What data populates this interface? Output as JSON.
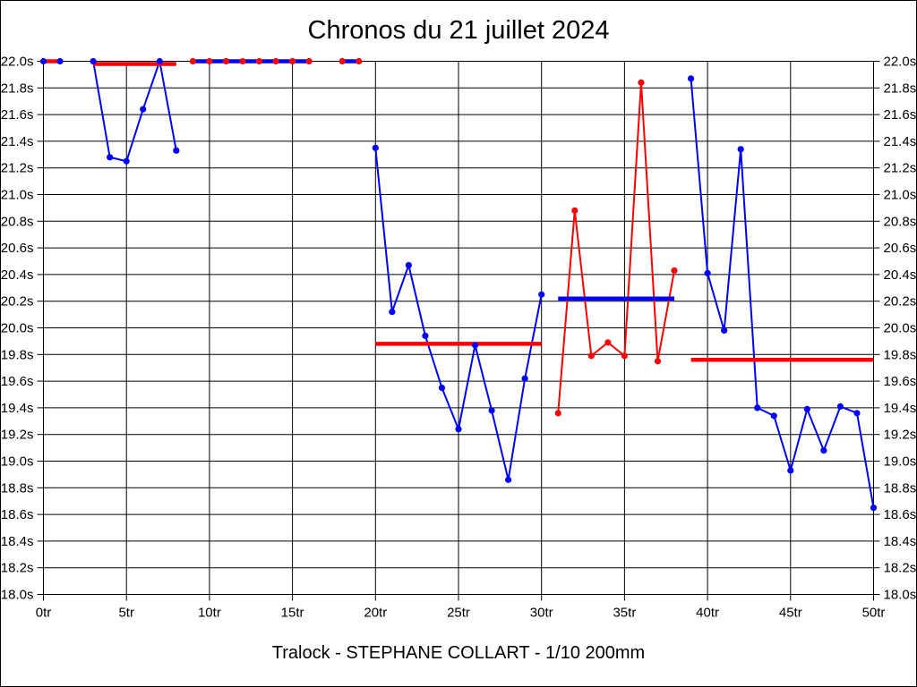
{
  "window": {
    "background": "#ffffff",
    "border_color": "#000000"
  },
  "chart_data": {
    "type": "line",
    "title": "Chronos du 21 juillet 2024",
    "footer": "Tralock - STEPHANE COLLART - 1/10 200mm",
    "xlabel": "",
    "ylabel": "",
    "x_unit": "tr",
    "y_unit": "s",
    "xlim": [
      0,
      50
    ],
    "ylim": [
      18.0,
      22.0
    ],
    "x_tick_step": 5,
    "y_tick_step": 0.2,
    "grid": true,
    "legend": "none",
    "x_tick_labels": [
      "0tr",
      "5tr",
      "10tr",
      "15tr",
      "20tr",
      "25tr",
      "30tr",
      "35tr",
      "40tr",
      "45tr",
      "50tr"
    ],
    "y_tick_labels": [
      "22.0s",
      "21.8s",
      "21.6s",
      "21.4s",
      "21.2s",
      "21.0s",
      "20.8s",
      "20.6s",
      "20.4s",
      "20.2s",
      "20.0s",
      "19.8s",
      "19.6s",
      "19.4s",
      "19.2s",
      "19.0s",
      "18.8s",
      "18.6s",
      "18.4s",
      "18.2s",
      "18.0s"
    ],
    "colors": {
      "blue": "#0000ff",
      "red": "#ff0000",
      "axis": "#000000"
    },
    "series": [
      {
        "name": "flight-1",
        "color": "blue",
        "points": [
          [
            0,
            22.0
          ],
          [
            1,
            22.0
          ]
        ]
      },
      {
        "name": "flight-2",
        "color": "blue",
        "points": [
          [
            3,
            22.0
          ],
          [
            4,
            21.28
          ],
          [
            5,
            21.25
          ],
          [
            6,
            21.64
          ],
          [
            7,
            22.0
          ],
          [
            8,
            21.33
          ]
        ]
      },
      {
        "name": "flight-3a",
        "color": "red",
        "points": [
          [
            9,
            22.0
          ],
          [
            10,
            22.0
          ],
          [
            11,
            22.0
          ],
          [
            12,
            22.0
          ],
          [
            13,
            22.0
          ],
          [
            14,
            22.0
          ],
          [
            15,
            22.0
          ],
          [
            16,
            22.0
          ]
        ]
      },
      {
        "name": "flight-3b",
        "color": "red",
        "points": [
          [
            18,
            22.0
          ],
          [
            19,
            22.0
          ]
        ]
      },
      {
        "name": "flight-4",
        "color": "blue",
        "points": [
          [
            20,
            21.35
          ],
          [
            21,
            20.12
          ],
          [
            22,
            20.47
          ],
          [
            23,
            19.94
          ],
          [
            24,
            19.55
          ],
          [
            25,
            19.24
          ],
          [
            26,
            19.87
          ],
          [
            27,
            19.38
          ],
          [
            28,
            18.86
          ],
          [
            29,
            19.62
          ],
          [
            30,
            20.25
          ]
        ]
      },
      {
        "name": "flight-5",
        "color": "red",
        "points": [
          [
            31,
            19.36
          ],
          [
            32,
            20.88
          ],
          [
            33,
            19.79
          ],
          [
            34,
            19.89
          ],
          [
            35,
            19.79
          ],
          [
            36,
            21.84
          ],
          [
            37,
            19.75
          ],
          [
            38,
            20.43
          ]
        ]
      },
      {
        "name": "flight-6",
        "color": "blue",
        "points": [
          [
            39,
            21.87
          ],
          [
            40,
            20.41
          ],
          [
            41,
            19.98
          ],
          [
            42,
            21.34
          ],
          [
            43,
            19.4
          ],
          [
            44,
            19.34
          ],
          [
            45,
            18.93
          ],
          [
            46,
            19.39
          ],
          [
            47,
            19.08
          ],
          [
            48,
            19.41
          ],
          [
            49,
            19.36
          ],
          [
            50,
            18.65
          ]
        ]
      }
    ],
    "average_segments": [
      {
        "name": "avg-flight-1",
        "color": "red",
        "x1": 0,
        "x2": 1,
        "y": 22.0
      },
      {
        "name": "avg-flight-2",
        "color": "red",
        "x1": 3,
        "x2": 8,
        "y": 21.98
      },
      {
        "name": "avg-flight-3a",
        "color": "blue",
        "x1": 9,
        "x2": 16,
        "y": 22.0
      },
      {
        "name": "avg-flight-3b",
        "color": "blue",
        "x1": 18,
        "x2": 19,
        "y": 22.0
      },
      {
        "name": "avg-flight-4",
        "color": "red",
        "x1": 20,
        "x2": 30,
        "y": 19.88
      },
      {
        "name": "avg-flight-5",
        "color": "blue",
        "x1": 31,
        "x2": 38,
        "y": 20.22
      },
      {
        "name": "avg-flight-6",
        "color": "red",
        "x1": 39,
        "x2": 50,
        "y": 19.76
      }
    ]
  }
}
